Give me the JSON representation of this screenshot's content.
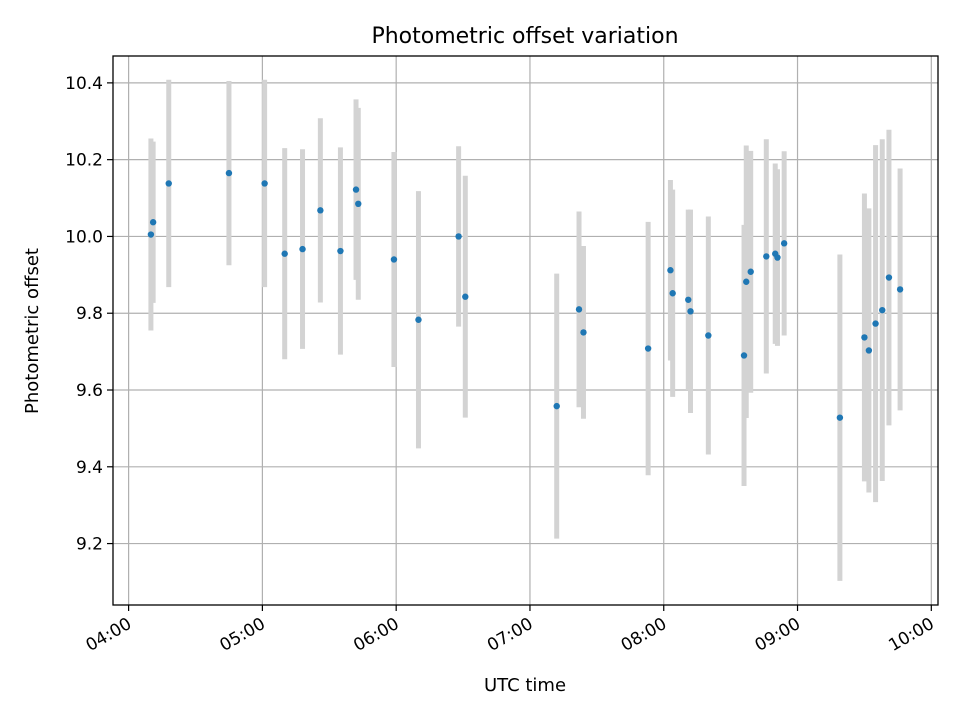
{
  "chart_data": {
    "type": "scatter",
    "title": "Photometric offset variation",
    "xlabel": "UTC time",
    "ylabel": "Photometric offset",
    "x_ticks": [
      "04:00",
      "05:00",
      "06:00",
      "07:00",
      "08:00",
      "09:00",
      "10:00"
    ],
    "y_ticks": [
      "9.2",
      "9.4",
      "9.6",
      "9.8",
      "10.0",
      "10.2",
      "10.4"
    ],
    "xlim": [
      "03:53",
      "10:03"
    ],
    "ylim": [
      9.04,
      10.47
    ],
    "grid": true,
    "colors": {
      "marker": "#1f77b4",
      "errorbar": "#d3d3d3"
    },
    "points": [
      {
        "x": "04:10",
        "y": 10.005,
        "err": 0.25
      },
      {
        "x": "04:11",
        "y": 10.037,
        "err": 0.21
      },
      {
        "x": "04:18",
        "y": 10.138,
        "err": 0.27
      },
      {
        "x": "04:45",
        "y": 10.165,
        "err": 0.24
      },
      {
        "x": "05:01",
        "y": 10.138,
        "err": 0.27
      },
      {
        "x": "05:10",
        "y": 9.955,
        "err": 0.275
      },
      {
        "x": "05:18",
        "y": 9.967,
        "err": 0.26
      },
      {
        "x": "05:26",
        "y": 10.068,
        "err": 0.24
      },
      {
        "x": "05:35",
        "y": 9.962,
        "err": 0.27
      },
      {
        "x": "05:42",
        "y": 10.122,
        "err": 0.235
      },
      {
        "x": "05:43",
        "y": 10.085,
        "err": 0.25
      },
      {
        "x": "05:59",
        "y": 9.94,
        "err": 0.28
      },
      {
        "x": "06:10",
        "y": 9.783,
        "err": 0.335
      },
      {
        "x": "06:28",
        "y": 10.0,
        "err": 0.235
      },
      {
        "x": "06:31",
        "y": 9.843,
        "err": 0.315
      },
      {
        "x": "07:12",
        "y": 9.558,
        "err": 0.345
      },
      {
        "x": "07:22",
        "y": 9.81,
        "err": 0.255
      },
      {
        "x": "07:24",
        "y": 9.75,
        "err": 0.225
      },
      {
        "x": "07:53",
        "y": 9.708,
        "err": 0.33
      },
      {
        "x": "08:03",
        "y": 9.912,
        "err": 0.235
      },
      {
        "x": "08:04",
        "y": 9.852,
        "err": 0.27
      },
      {
        "x": "08:11",
        "y": 9.835,
        "err": 0.235
      },
      {
        "x": "08:12",
        "y": 9.805,
        "err": 0.265
      },
      {
        "x": "08:20",
        "y": 9.742,
        "err": 0.31
      },
      {
        "x": "08:36",
        "y": 9.69,
        "err": 0.34
      },
      {
        "x": "08:37",
        "y": 9.882,
        "err": 0.355
      },
      {
        "x": "08:39",
        "y": 9.908,
        "err": 0.315
      },
      {
        "x": "08:46",
        "y": 9.948,
        "err": 0.305
      },
      {
        "x": "08:50",
        "y": 9.955,
        "err": 0.235
      },
      {
        "x": "08:51",
        "y": 9.945,
        "err": 0.23
      },
      {
        "x": "08:54",
        "y": 9.982,
        "err": 0.24
      },
      {
        "x": "09:19",
        "y": 9.528,
        "err": 0.425
      },
      {
        "x": "09:30",
        "y": 9.737,
        "err": 0.375
      },
      {
        "x": "09:32",
        "y": 9.703,
        "err": 0.37
      },
      {
        "x": "09:35",
        "y": 9.773,
        "err": 0.465
      },
      {
        "x": "09:38",
        "y": 9.808,
        "err": 0.445
      },
      {
        "x": "09:41",
        "y": 9.893,
        "err": 0.385
      },
      {
        "x": "09:46",
        "y": 9.862,
        "err": 0.315
      }
    ]
  }
}
